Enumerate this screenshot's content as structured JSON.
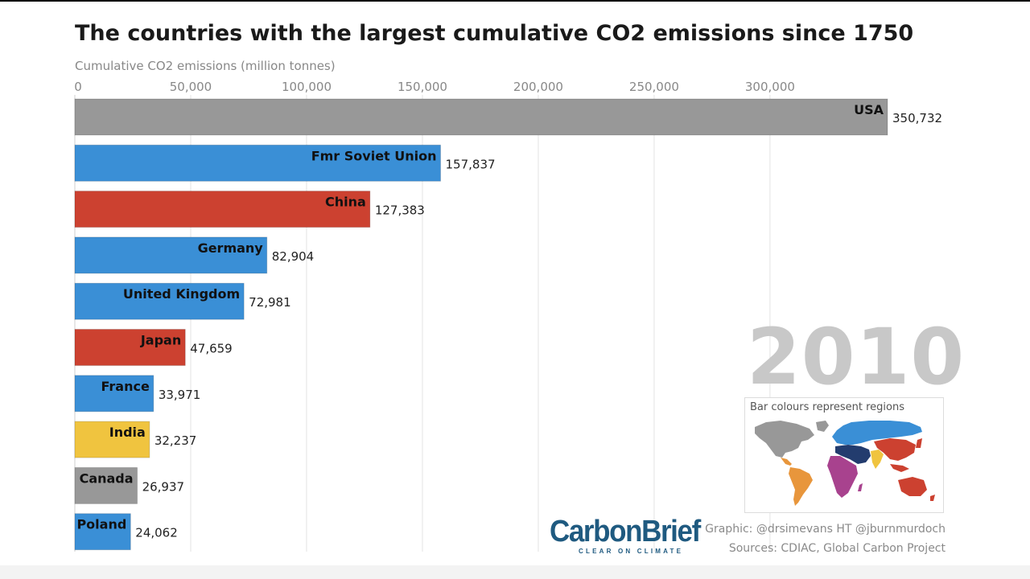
{
  "title": "The countries with the largest cumulative CO2 emissions since 1750",
  "year": "2010",
  "legend_title": "Bar colours represent regions",
  "credit": "Graphic: @drsimevans HT @jburnmurdoch",
  "sources": "Sources: CDIAC, Global Carbon Project",
  "logo": {
    "name": "CarbonBrief",
    "tagline": "CLEAR ON CLIMATE"
  },
  "colors": {
    "north_america": "#989898",
    "europe": "#3a8fd6",
    "asia_pacific": "#cc4130",
    "india": "#f0c43f",
    "latin_america": "#e8963c",
    "africa": "#a8428e",
    "middle_east": "#233c6e"
  },
  "chart_data": {
    "type": "bar",
    "orientation": "horizontal",
    "title": "The countries with the largest cumulative CO2 emissions since 1750",
    "xlabel": "Cumulative CO2 emissions (million tonnes)",
    "xlim": [
      0,
      350732
    ],
    "x_ticks": [
      0,
      50000,
      100000,
      150000,
      200000,
      250000,
      300000
    ],
    "x_tick_labels": [
      "0",
      "50,000",
      "100,000",
      "150,000",
      "200,000",
      "250,000",
      "300,000"
    ],
    "grid": true,
    "bars": [
      {
        "label": "USA",
        "value": 350732,
        "value_label": "350,732",
        "color": "#989898"
      },
      {
        "label": "Fmr Soviet Union",
        "value": 157837,
        "value_label": "157,837",
        "color": "#3a8fd6"
      },
      {
        "label": "China",
        "value": 127383,
        "value_label": "127,383",
        "color": "#cc4130"
      },
      {
        "label": "Germany",
        "value": 82904,
        "value_label": "82,904",
        "color": "#3a8fd6"
      },
      {
        "label": "United Kingdom",
        "value": 72981,
        "value_label": "72,981",
        "color": "#3a8fd6"
      },
      {
        "label": "Japan",
        "value": 47659,
        "value_label": "47,659",
        "color": "#cc4130"
      },
      {
        "label": "France",
        "value": 33971,
        "value_label": "33,971",
        "color": "#3a8fd6"
      },
      {
        "label": "India",
        "value": 32237,
        "value_label": "32,237",
        "color": "#f0c43f"
      },
      {
        "label": "Canada",
        "value": 26937,
        "value_label": "26,937",
        "color": "#989898"
      },
      {
        "label": "Poland",
        "value": 24062,
        "value_label": "24,062",
        "color": "#3a8fd6"
      }
    ]
  }
}
